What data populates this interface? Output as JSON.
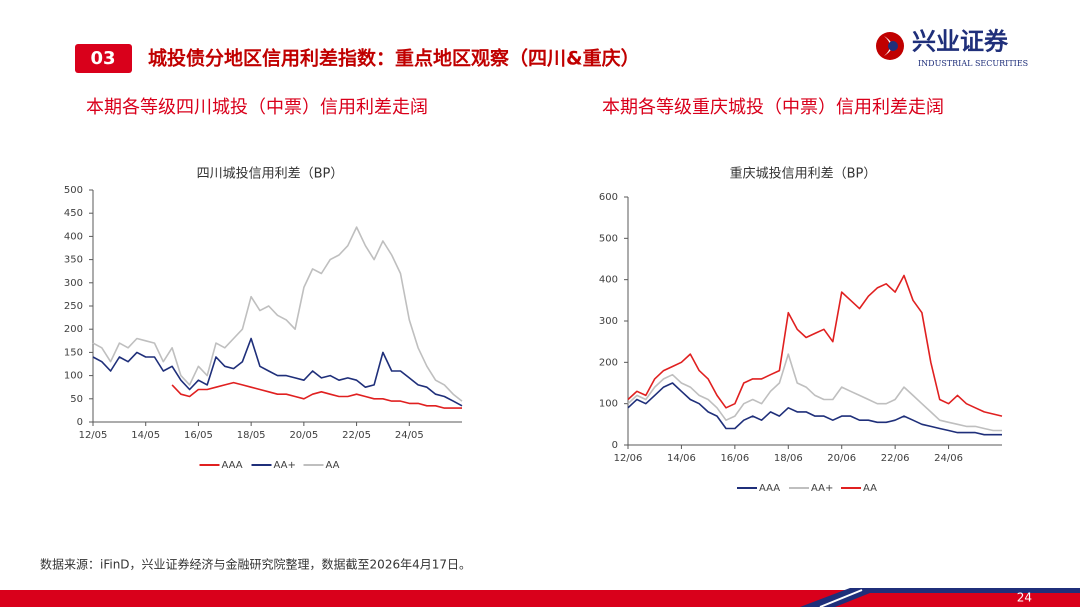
{
  "header": {
    "section_number": "03",
    "title": "城投债分地区信用利差指数：重点地区观察（四川&重庆）"
  },
  "logo": {
    "name": "兴业证券",
    "english": "INDUSTRIAL SECURITIES"
  },
  "subtitles": [
    "本期各等级四川城投（中票）信用利差走阔",
    "本期各等级重庆城投（中票）信用利差走阔"
  ],
  "chart_data": [
    {
      "type": "line",
      "title": "四川城投信用利差（BP）",
      "x": [
        "12/05",
        "12/09",
        "13/01",
        "13/05",
        "13/09",
        "14/01",
        "14/05",
        "14/09",
        "15/01",
        "15/05",
        "15/09",
        "16/01",
        "16/05",
        "16/09",
        "17/01",
        "17/05",
        "17/09",
        "18/01",
        "18/05",
        "18/09",
        "19/01",
        "19/05",
        "19/09",
        "20/01",
        "20/05",
        "20/09",
        "21/01",
        "21/05",
        "21/09",
        "22/01",
        "22/05",
        "22/09",
        "23/01",
        "23/05",
        "23/09",
        "24/01",
        "24/05",
        "24/09",
        "25/01",
        "25/05",
        "25/09",
        "26/01",
        "26/04"
      ],
      "xticks": [
        "12/05",
        "14/05",
        "16/05",
        "18/05",
        "20/05",
        "22/05",
        "24/05"
      ],
      "ylim": [
        0,
        500
      ],
      "yticks": [
        0,
        50,
        100,
        150,
        200,
        250,
        300,
        350,
        400,
        450,
        500
      ],
      "legend": "bottom",
      "series": [
        {
          "name": "AAA",
          "color": "#e02020",
          "values": [
            null,
            null,
            null,
            null,
            null,
            null,
            null,
            null,
            null,
            80,
            60,
            55,
            70,
            70,
            75,
            80,
            85,
            80,
            75,
            70,
            65,
            60,
            60,
            55,
            50,
            60,
            65,
            60,
            55,
            55,
            60,
            55,
            50,
            50,
            45,
            45,
            40,
            40,
            35,
            35,
            30,
            30,
            30
          ]
        },
        {
          "name": "AA+",
          "color": "#1f2f7a",
          "values": [
            140,
            130,
            110,
            140,
            130,
            150,
            140,
            140,
            110,
            120,
            90,
            70,
            90,
            80,
            140,
            120,
            115,
            130,
            180,
            120,
            110,
            100,
            100,
            95,
            90,
            110,
            95,
            100,
            90,
            95,
            90,
            75,
            80,
            150,
            110,
            110,
            95,
            80,
            75,
            60,
            55,
            45,
            35
          ]
        },
        {
          "name": "AA",
          "color": "#bfbfbf",
          "values": [
            170,
            160,
            130,
            170,
            160,
            180,
            175,
            170,
            130,
            160,
            100,
            80,
            120,
            100,
            170,
            160,
            180,
            200,
            270,
            240,
            250,
            230,
            220,
            200,
            290,
            330,
            320,
            350,
            360,
            380,
            420,
            380,
            350,
            390,
            360,
            320,
            220,
            160,
            120,
            90,
            80,
            60,
            45
          ]
        }
      ]
    },
    {
      "type": "line",
      "title": "重庆城投信用利差（BP）",
      "x": [
        "12/06",
        "12/10",
        "13/02",
        "13/06",
        "13/10",
        "14/02",
        "14/06",
        "14/10",
        "15/02",
        "15/06",
        "15/10",
        "16/02",
        "16/06",
        "16/10",
        "17/02",
        "17/06",
        "17/10",
        "18/02",
        "18/06",
        "18/10",
        "19/02",
        "19/06",
        "19/10",
        "20/02",
        "20/06",
        "20/10",
        "21/02",
        "21/06",
        "21/10",
        "22/02",
        "22/06",
        "22/10",
        "23/02",
        "23/06",
        "23/10",
        "24/02",
        "24/06",
        "24/10",
        "25/02",
        "25/06",
        "25/10",
        "26/02",
        "26/04"
      ],
      "xticks": [
        "12/06",
        "14/06",
        "16/06",
        "18/06",
        "20/06",
        "22/06",
        "24/06"
      ],
      "ylim": [
        0,
        600
      ],
      "yticks": [
        0,
        100,
        200,
        300,
        400,
        500,
        600
      ],
      "legend": "bottom",
      "series": [
        {
          "name": "AAA",
          "color": "#1f2f7a",
          "values": [
            90,
            110,
            100,
            120,
            140,
            150,
            130,
            110,
            100,
            80,
            70,
            40,
            40,
            60,
            70,
            60,
            80,
            70,
            90,
            80,
            80,
            70,
            70,
            60,
            70,
            70,
            60,
            60,
            55,
            55,
            60,
            70,
            60,
            50,
            45,
            40,
            35,
            30,
            30,
            30,
            25,
            25,
            25
          ]
        },
        {
          "name": "AA+",
          "color": "#bfbfbf",
          "values": [
            100,
            120,
            110,
            140,
            160,
            170,
            150,
            140,
            120,
            110,
            90,
            60,
            70,
            100,
            110,
            100,
            130,
            150,
            220,
            150,
            140,
            120,
            110,
            110,
            140,
            130,
            120,
            110,
            100,
            100,
            110,
            140,
            120,
            100,
            80,
            60,
            55,
            50,
            45,
            45,
            40,
            35,
            35
          ]
        },
        {
          "name": "AA",
          "color": "#e02020",
          "values": [
            110,
            130,
            120,
            160,
            180,
            190,
            200,
            220,
            180,
            160,
            120,
            90,
            100,
            150,
            160,
            160,
            170,
            180,
            320,
            280,
            260,
            270,
            280,
            250,
            370,
            350,
            330,
            360,
            380,
            390,
            370,
            410,
            350,
            320,
            200,
            110,
            100,
            120,
            100,
            90,
            80,
            75,
            70
          ]
        }
      ]
    }
  ],
  "footer": {
    "source": "数据来源：iFinD，兴业证券经济与金融研究院整理，数据截至2026年4月17日。",
    "page": 24
  }
}
